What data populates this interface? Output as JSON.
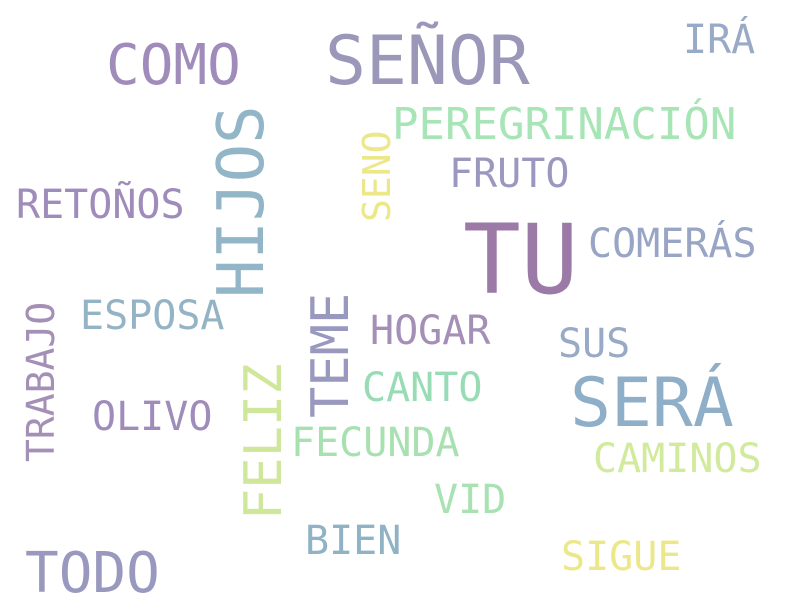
{
  "word_cloud": {
    "background": "#ffffff",
    "words": [
      {
        "id": "tu",
        "text": "TU",
        "color": "#9b7aa7"
      },
      {
        "id": "senor",
        "text": "SEÑOR",
        "color": "#9a97b8"
      },
      {
        "id": "sera",
        "text": "SERÁ",
        "color": "#8faec8"
      },
      {
        "id": "como",
        "text": "COMO",
        "color": "#a08cbb"
      },
      {
        "id": "todo",
        "text": "TODO",
        "color": "#9998be"
      },
      {
        "id": "hijos",
        "text": "HIJOS",
        "color": "#92b5c7"
      },
      {
        "id": "teme",
        "text": "TEME",
        "color": "#9998be"
      },
      {
        "id": "feliz",
        "text": "FELIZ",
        "color": "#cfe79a"
      },
      {
        "id": "seno",
        "text": "SENO",
        "color": "#ece88a"
      },
      {
        "id": "trabajo",
        "text": "TRABAJO",
        "color": "#a48fb6"
      },
      {
        "id": "peregrinacion",
        "text": "PEREGRINACIÓN",
        "color": "#a8e5b6"
      },
      {
        "id": "fruto",
        "text": "FRUTO",
        "color": "#9b98bf"
      },
      {
        "id": "retonos",
        "text": "RETOÑOS",
        "color": "#a08cbb"
      },
      {
        "id": "comeras",
        "text": "COMERÁS",
        "color": "#98a5c5"
      },
      {
        "id": "esposa",
        "text": "ESPOSA",
        "color": "#94b4c5"
      },
      {
        "id": "hogar",
        "text": "HOGAR",
        "color": "#a48fb6"
      },
      {
        "id": "sus",
        "text": "SUS",
        "color": "#98aac6"
      },
      {
        "id": "canto",
        "text": "CANTO",
        "color": "#98dcb6"
      },
      {
        "id": "olivo",
        "text": "OLIVO",
        "color": "#a08cbb"
      },
      {
        "id": "fecunda",
        "text": "FECUNDA",
        "color": "#a8e1b0"
      },
      {
        "id": "caminos",
        "text": "CAMINOS",
        "color": "#d2ea9c"
      },
      {
        "id": "vid",
        "text": "VID",
        "color": "#a8e2b2"
      },
      {
        "id": "bien",
        "text": "BIEN",
        "color": "#8fb2c5"
      },
      {
        "id": "sigue",
        "text": "SIGUE",
        "color": "#ece88a"
      },
      {
        "id": "ira",
        "text": "IRÁ",
        "color": "#98aac6"
      }
    ]
  }
}
